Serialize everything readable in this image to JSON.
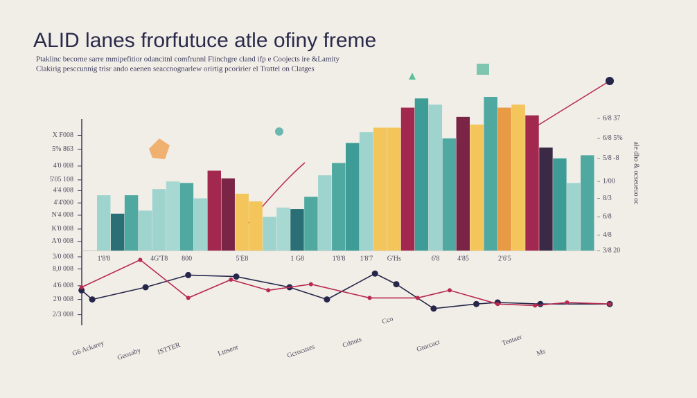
{
  "chart_data": [
    {
      "type": "bar",
      "title": "ALID lanes frorfutuce atle ofiny freme",
      "subtitle": [
        "Ptaklinc becorne sarre mmipefitior odancitnl comfrunnl Flinchgre cland ifp e Coojects ire &Lamity",
        "Clakirig pesccunnig trisr ando eaenen seaccnognarlew orirtig pcoririer el Trattel on Clatges"
      ],
      "categories": [
        "1'8'8",
        null,
        null,
        null,
        "4G'T8",
        null,
        "800",
        null,
        null,
        null,
        "5'E8",
        null,
        null,
        null,
        "1 G8",
        null,
        null,
        "1'8'8",
        null,
        "1'8'7",
        null,
        "G'Hs",
        null,
        null,
        "6'8",
        null,
        "4'85",
        null,
        null,
        "2'6'5",
        null,
        null,
        null,
        null,
        null,
        null
      ],
      "values": [
        36,
        24,
        36,
        26,
        40,
        45,
        44,
        34,
        52,
        47,
        37,
        32,
        22,
        28,
        27,
        35,
        49,
        57,
        70,
        77,
        80,
        80,
        93,
        99,
        95,
        73,
        87,
        82,
        100,
        93,
        95,
        88,
        67,
        60,
        44,
        62
      ],
      "colors": [
        "#9fd3cd",
        "#2a6f75",
        "#4fa9a0",
        "#9fd3cd",
        "#9fd3cd",
        "#a8d8d2",
        "#4fa9a0",
        "#9fd3cd",
        "#a3284f",
        "#7a2446",
        "#f3c55a",
        "#f3c55a",
        "#9fd3cd",
        "#a8d8d2",
        "#2a6f75",
        "#4fa9a0",
        "#9fd3cd",
        "#4fa9a0",
        "#3d9d96",
        "#9fd3cd",
        "#f3c55a",
        "#f3c55a",
        "#a3284f",
        "#3d9d96",
        "#9fd3cd",
        "#4fa9a0",
        "#7a2446",
        "#f3c55a",
        "#4fa9a0",
        "#e89a45",
        "#f3c55a",
        "#a3284f",
        "#3a2a45",
        "#3d9d96",
        "#9fd3cd",
        "#4fa9a0"
      ],
      "ylim": [
        0,
        100
      ],
      "yticks": [
        {
          "value": 75,
          "label": "X F008"
        },
        {
          "value": 66,
          "label": "5% 863"
        },
        {
          "value": 55,
          "label": "4'0 008"
        },
        {
          "value": 46,
          "label": "5'05 108"
        },
        {
          "value": 39,
          "label": "4'4 008"
        },
        {
          "value": 31,
          "label": "4'4'000"
        },
        {
          "value": 23,
          "label": "N'4 008"
        },
        {
          "value": 14,
          "label": "K'0 008"
        },
        {
          "value": 6,
          "label": "A'0 008"
        }
      ],
      "y2lim": [
        0,
        100
      ],
      "y2ticks": [
        {
          "value": 86,
          "label": "6/8 37"
        },
        {
          "value": 73,
          "label": "6/8 5%"
        },
        {
          "value": 60,
          "label": "5/8 -8"
        },
        {
          "value": 45,
          "label": "1/00"
        },
        {
          "value": 34,
          "label": "8/3"
        },
        {
          "value": 22,
          "label": "6/8"
        },
        {
          "value": 10,
          "label": "4/8"
        },
        {
          "value": 0,
          "label": "3/8 20"
        }
      ],
      "side_text": "ale dho & ocseueuo oc"
    },
    {
      "type": "line",
      "xlim": [
        0,
        100
      ],
      "ylim": [
        0,
        50
      ],
      "yticks": [
        {
          "value": 45,
          "label": "3/0 008"
        },
        {
          "value": 37,
          "label": "8,0 008"
        },
        {
          "value": 26,
          "label": "4'6 008"
        },
        {
          "value": 17,
          "label": "2'0 008"
        },
        {
          "value": 7,
          "label": "2/3 008"
        }
      ],
      "series": [
        {
          "color": "#26264a",
          "x": [
            1,
            3,
            13,
            21,
            30,
            40,
            47,
            56,
            60,
            67,
            75,
            79,
            87,
            100
          ],
          "values": [
            23,
            17,
            25,
            33,
            32,
            25,
            17,
            34,
            27,
            11,
            14,
            15,
            14,
            14
          ]
        },
        {
          "color": "#b8284f",
          "x": [
            1,
            12,
            21,
            29,
            36,
            44,
            55,
            64,
            70,
            79,
            86,
            92,
            100
          ],
          "values": [
            25,
            43,
            18,
            30,
            23,
            27,
            18,
            18,
            23,
            14,
            13,
            15,
            14
          ]
        }
      ],
      "annotations": [
        "G6 Ackarey",
        "Geosaby",
        "ISTTER",
        "Ltnsenr",
        "Gcrocuses",
        "Cdnuts",
        "Cco",
        "Gtorcacr",
        "Tentaer",
        "Ms"
      ]
    }
  ]
}
